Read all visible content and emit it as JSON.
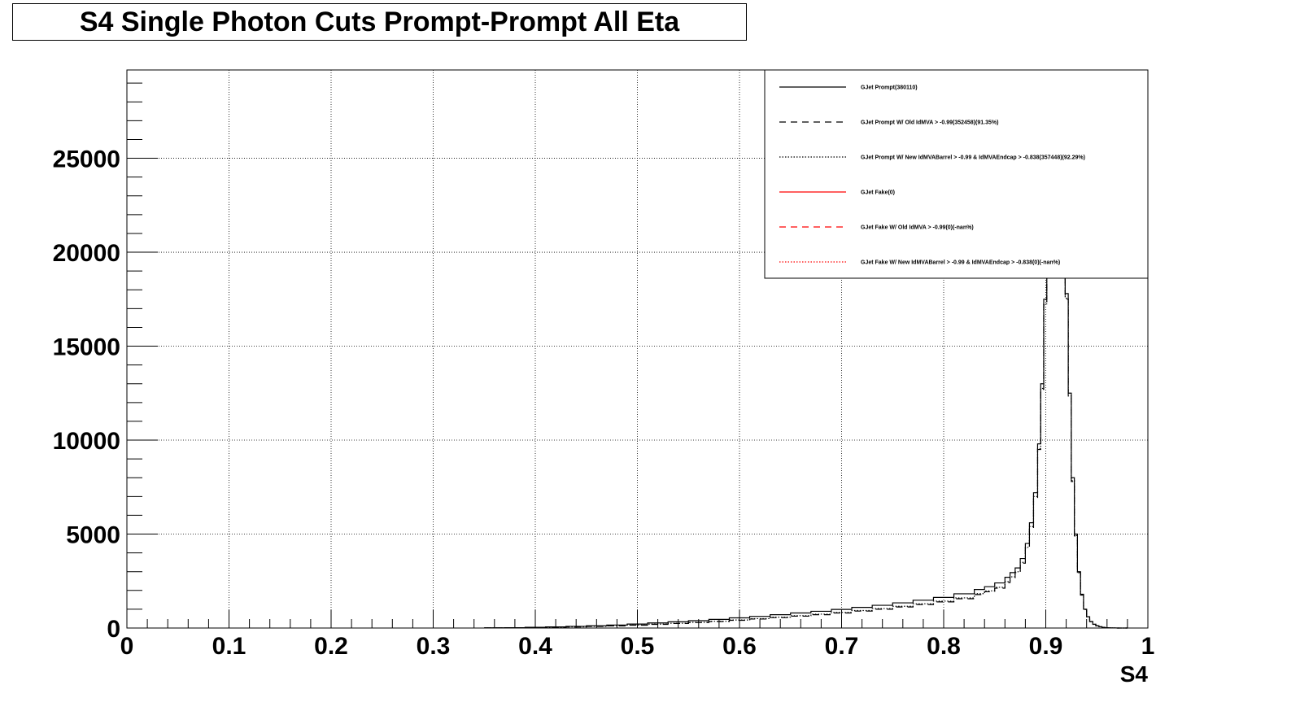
{
  "title": "S4 Single Photon Cuts Prompt-Prompt All Eta",
  "chart_data": {
    "type": "line",
    "subtype": "step-histogram",
    "title": "S4 Single Photon Cuts Prompt-Prompt All Eta",
    "xlabel": "S4",
    "ylabel": "",
    "xlim": [
      0,
      1
    ],
    "ylim": [
      0,
      29700
    ],
    "grid": true,
    "legend_position": "top-right",
    "x_ticks": [
      "0",
      "0.1",
      "0.2",
      "0.3",
      "0.4",
      "0.5",
      "0.6",
      "0.7",
      "0.8",
      "0.9",
      "1"
    ],
    "y_ticks": [
      "0",
      "5000",
      "10000",
      "15000",
      "20000",
      "25000"
    ],
    "series": [
      {
        "name": "GJet Prompt(380110)",
        "color": "#000000",
        "dash": "solid",
        "x": [
          0.35,
          0.37,
          0.39,
          0.41,
          0.43,
          0.45,
          0.47,
          0.49,
          0.51,
          0.53,
          0.55,
          0.57,
          0.59,
          0.61,
          0.63,
          0.65,
          0.67,
          0.69,
          0.71,
          0.73,
          0.75,
          0.77,
          0.79,
          0.81,
          0.83,
          0.84,
          0.85,
          0.86,
          0.865,
          0.87,
          0.875,
          0.88,
          0.884,
          0.888,
          0.892,
          0.895,
          0.898,
          0.901,
          0.904,
          0.907,
          0.91,
          0.913,
          0.916,
          0.919,
          0.922,
          0.925,
          0.928,
          0.931,
          0.934,
          0.937,
          0.94,
          0.943,
          0.946,
          0.949,
          0.952,
          0.955,
          0.958,
          0.961,
          0.964,
          0.967,
          0.97,
          0.975,
          0.98
        ],
        "y": [
          10,
          20,
          40,
          60,
          90,
          120,
          160,
          210,
          270,
          330,
          390,
          460,
          540,
          620,
          710,
          800,
          890,
          990,
          1100,
          1210,
          1340,
          1480,
          1630,
          1820,
          2050,
          2200,
          2400,
          2700,
          2950,
          3200,
          3700,
          4500,
          5600,
          7200,
          9800,
          13000,
          17500,
          22000,
          25500,
          27500,
          27800,
          26000,
          22500,
          17800,
          12500,
          8000,
          5000,
          3000,
          1800,
          1000,
          600,
          350,
          200,
          120,
          70,
          40,
          20,
          10,
          5,
          3,
          1,
          0,
          0
        ]
      },
      {
        "name": "GJet Prompt W/ Old IdMVA > -0.99(352458)(91.35%)",
        "color": "#000000",
        "dash": "dashed",
        "x": [
          0.35,
          0.37,
          0.39,
          0.41,
          0.43,
          0.45,
          0.47,
          0.49,
          0.51,
          0.53,
          0.55,
          0.57,
          0.59,
          0.61,
          0.63,
          0.65,
          0.67,
          0.69,
          0.71,
          0.73,
          0.75,
          0.77,
          0.79,
          0.81,
          0.83,
          0.84,
          0.85,
          0.86,
          0.865,
          0.87,
          0.875,
          0.88,
          0.884,
          0.888,
          0.892,
          0.895,
          0.898,
          0.901,
          0.904,
          0.907,
          0.91,
          0.913,
          0.916,
          0.919,
          0.922,
          0.925,
          0.928,
          0.931,
          0.934,
          0.937,
          0.94,
          0.943,
          0.946,
          0.949,
          0.952,
          0.955,
          0.958,
          0.961,
          0.964,
          0.967,
          0.97,
          0.975,
          0.98
        ],
        "y": [
          5,
          12,
          25,
          40,
          60,
          85,
          115,
          150,
          195,
          240,
          290,
          345,
          410,
          480,
          555,
          630,
          710,
          800,
          900,
          1000,
          1120,
          1250,
          1390,
          1560,
          1780,
          1930,
          2120,
          2420,
          2680,
          2950,
          3450,
          4250,
          5350,
          6950,
          9500,
          12700,
          17200,
          21700,
          25200,
          27200,
          27500,
          25700,
          22200,
          17500,
          12300,
          7800,
          4900,
          2950,
          1750,
          980,
          590,
          340,
          195,
          115,
          68,
          38,
          19,
          9,
          4,
          2,
          1,
          0,
          0
        ]
      },
      {
        "name": "GJet Prompt W/ New IdMVABarrel > -0.99 & IdMVAEndcap > -0.838(357448)(92.29%)",
        "color": "#000000",
        "dash": "dotted",
        "x": [
          0.35,
          0.37,
          0.39,
          0.41,
          0.43,
          0.45,
          0.47,
          0.49,
          0.51,
          0.53,
          0.55,
          0.57,
          0.59,
          0.61,
          0.63,
          0.65,
          0.67,
          0.69,
          0.71,
          0.73,
          0.75,
          0.77,
          0.79,
          0.81,
          0.83,
          0.84,
          0.85,
          0.86,
          0.865,
          0.87,
          0.875,
          0.88,
          0.884,
          0.888,
          0.892,
          0.895,
          0.898,
          0.901,
          0.904,
          0.907,
          0.91,
          0.913,
          0.916,
          0.919,
          0.922,
          0.925,
          0.928,
          0.931,
          0.934,
          0.937,
          0.94,
          0.943,
          0.946,
          0.949,
          0.952,
          0.955,
          0.958,
          0.961,
          0.964,
          0.967,
          0.97,
          0.975,
          0.98
        ],
        "y": [
          6,
          13,
          27,
          43,
          64,
          90,
          122,
          158,
          205,
          252,
          303,
          360,
          428,
          500,
          578,
          656,
          738,
          830,
          932,
          1036,
          1158,
          1290,
          1432,
          1605,
          1828,
          1978,
          2168,
          2468,
          2725,
          2995,
          3495,
          4295,
          5400,
          7000,
          9550,
          12750,
          17250,
          21750,
          25250,
          27250,
          27550,
          25750,
          22250,
          17550,
          12350,
          7850,
          4920,
          2960,
          1760,
          985,
          592,
          342,
          196,
          116,
          68,
          38,
          19,
          9,
          4,
          2,
          1,
          0,
          0
        ]
      },
      {
        "name": "GJet Fake(0)",
        "color": "#ff0000",
        "dash": "solid",
        "x": [],
        "y": []
      },
      {
        "name": "GJet Fake W/ Old IdMVA > -0.99(0)(-nan%)",
        "color": "#ff0000",
        "dash": "dashed",
        "x": [],
        "y": []
      },
      {
        "name": "GJet Fake W/ New IdMVABarrel > -0.99 & IdMVAEndcap > -0.838(0)(-nan%)",
        "color": "#ff0000",
        "dash": "dotted",
        "x": [],
        "y": []
      }
    ]
  }
}
